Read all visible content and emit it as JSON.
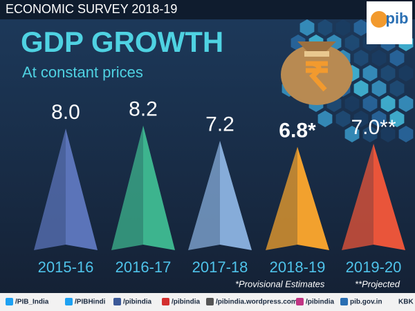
{
  "chart_data": {
    "type": "pyramid",
    "header": "ECONOMIC SURVEY 2018-19",
    "title": "GDP GROWTH",
    "subtitle": "At constant prices",
    "categories": [
      "2015-16",
      "2016-17",
      "2017-18",
      "2018-19",
      "2019-20"
    ],
    "values": [
      8.0,
      8.2,
      7.2,
      6.8,
      7.0
    ],
    "value_labels": [
      "8.0",
      "8.2",
      "7.2",
      "6.8*",
      "7.0**"
    ],
    "colors": [
      "#5b74b9",
      "#3db48e",
      "#86acd9",
      "#f2a12e",
      "#e9553a"
    ],
    "notes": [
      "*Provisional Estimates",
      "**Projected"
    ],
    "logo": "pib",
    "footer": [
      "/PIB_India",
      "/PIBHindi",
      "/pibindia",
      "/pibindia",
      "/pibindia.wordpress.com",
      "/pibindia",
      "pib.gov.in",
      "KBK"
    ]
  }
}
